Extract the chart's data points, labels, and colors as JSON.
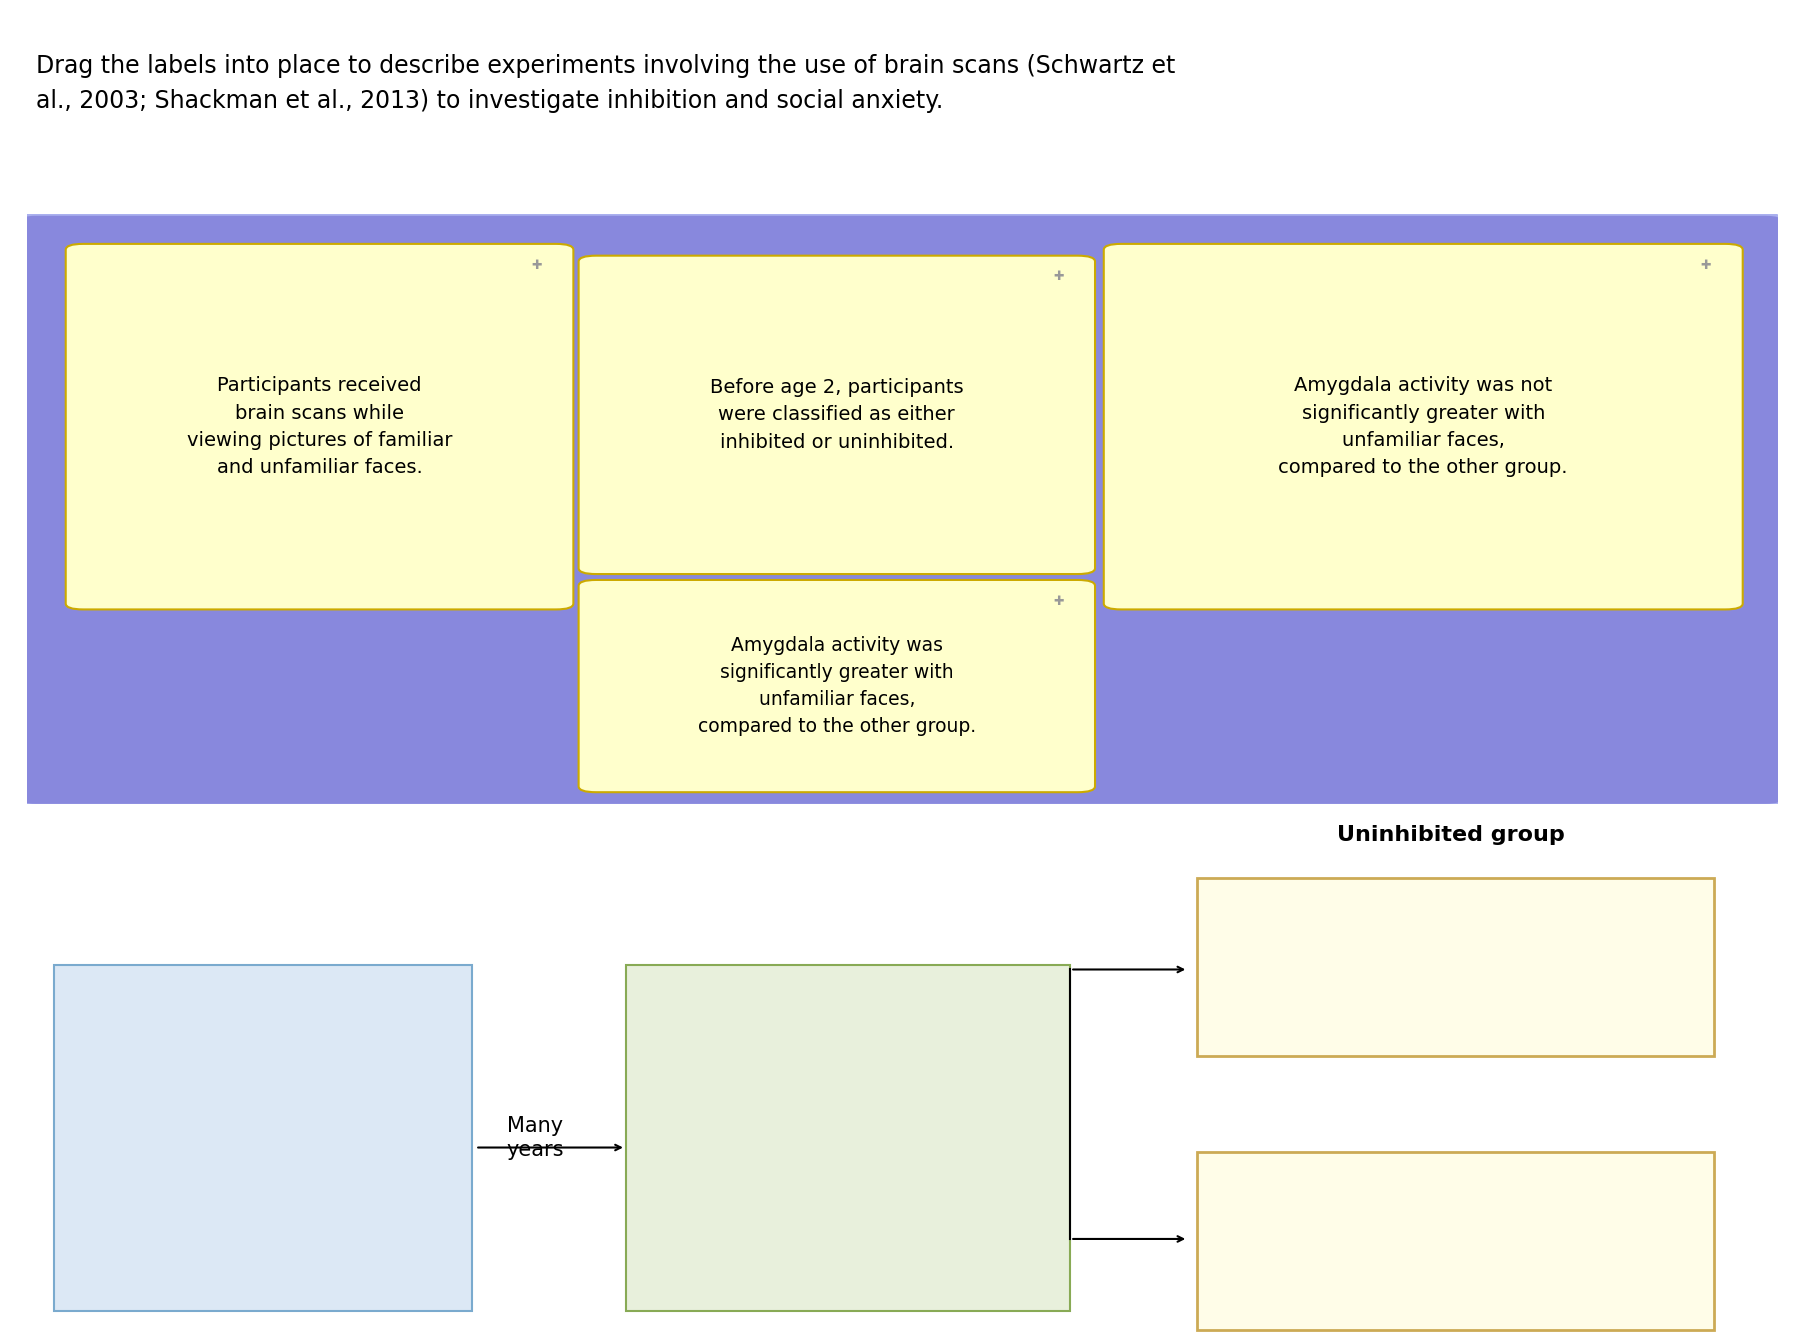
{
  "title_text": "Drag the labels into place to describe experiments involving the use of brain scans (Schwartz et\nal., 2003; Shackman et al., 2013) to investigate inhibition and social anxiety.",
  "title_fontsize": 17,
  "title_color": "#000000",
  "top_bar_color": "#7b2d8b",
  "bg_color": "#ffffff",
  "blue_box_color": "#8888dd",
  "yellow_box_bg": "#ffffcc",
  "yellow_box_edge": "#ccaa00",
  "many_years_label": "Many\nyears",
  "uninh_label": "Uninhibited group"
}
